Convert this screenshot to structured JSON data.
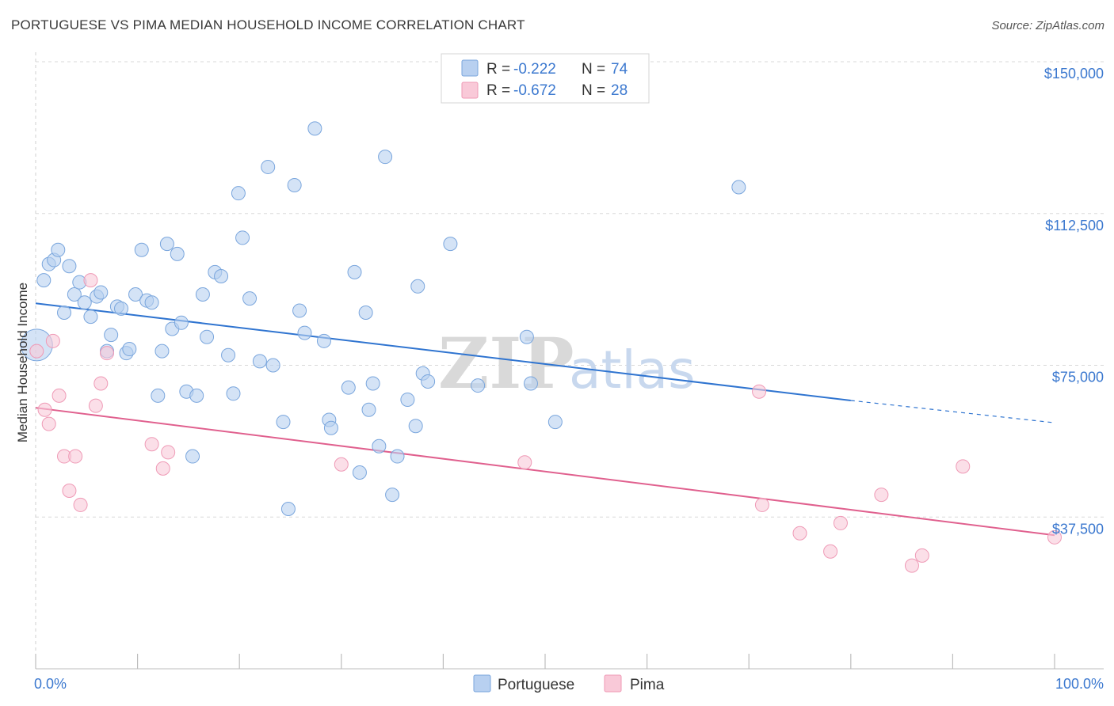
{
  "header": {
    "title": "PORTUGUESE VS PIMA MEDIAN HOUSEHOLD INCOME CORRELATION CHART",
    "source": "Source: ZipAtlas.com"
  },
  "watermark": {
    "zip": "ZIP",
    "atlas": "atlas"
  },
  "legend": {
    "rows": [
      {
        "r_label": "R =",
        "r_value": "-0.222",
        "n_label": "N =",
        "n_value": "74"
      },
      {
        "r_label": "R =",
        "r_value": "-0.672",
        "n_label": "N =",
        "n_value": "28"
      }
    ]
  },
  "bottom_legend": [
    "Portuguese",
    "Pima"
  ],
  "colors": {
    "portuguese_fill": "#b8d0f0",
    "portuguese_stroke": "#7aa6dd",
    "portuguese_line": "#2f74d0",
    "pima_fill": "#f9c9d8",
    "pima_stroke": "#ef9ab6",
    "pima_line": "#e0608e",
    "grid": "#d8d8d8",
    "tick_text": "#3b78cf"
  },
  "chart_data": {
    "type": "scatter",
    "title": "PORTUGUESE VS PIMA MEDIAN HOUSEHOLD INCOME CORRELATION CHART",
    "xlabel": "",
    "ylabel": "Median Household Income",
    "xlim": [
      0,
      100
    ],
    "ylim": [
      0,
      157500
    ],
    "x_tick_labels": [
      "0.0%",
      "100.0%"
    ],
    "y_ticks": [
      37500,
      75000,
      112500,
      150000
    ],
    "y_tick_labels": [
      "$37,500",
      "$75,000",
      "$112,500",
      "$150,000"
    ],
    "grid": true,
    "legend_position": "top-center",
    "series": [
      {
        "name": "Portuguese",
        "r": -0.222,
        "n": 74,
        "trend": {
          "x": [
            0,
            80,
            100
          ],
          "y": [
            90300,
            66300,
            60800
          ],
          "dashed_from_x": 80
        },
        "points": [
          [
            0.1,
            80000
          ],
          [
            0.8,
            96000
          ],
          [
            1.3,
            100000
          ],
          [
            1.8,
            101000
          ],
          [
            2.2,
            103500
          ],
          [
            2.8,
            88000
          ],
          [
            3.3,
            99500
          ],
          [
            3.8,
            92500
          ],
          [
            4.3,
            95500
          ],
          [
            4.8,
            90500
          ],
          [
            5.4,
            87000
          ],
          [
            6.0,
            92000
          ],
          [
            6.4,
            93000
          ],
          [
            7.0,
            78500
          ],
          [
            7.4,
            82500
          ],
          [
            8.0,
            89500
          ],
          [
            8.4,
            89000
          ],
          [
            8.9,
            78000
          ],
          [
            9.2,
            79000
          ],
          [
            9.8,
            92500
          ],
          [
            10.4,
            103500
          ],
          [
            10.9,
            91000
          ],
          [
            11.4,
            90500
          ],
          [
            12.0,
            67500
          ],
          [
            12.4,
            78500
          ],
          [
            12.9,
            105000
          ],
          [
            13.4,
            84000
          ],
          [
            13.9,
            102500
          ],
          [
            14.3,
            85500
          ],
          [
            14.8,
            68500
          ],
          [
            15.4,
            52500
          ],
          [
            15.8,
            67500
          ],
          [
            16.4,
            92500
          ],
          [
            16.8,
            82000
          ],
          [
            17.6,
            98000
          ],
          [
            18.2,
            97000
          ],
          [
            18.9,
            77500
          ],
          [
            19.4,
            68000
          ],
          [
            19.9,
            117500
          ],
          [
            20.3,
            106500
          ],
          [
            21.0,
            91500
          ],
          [
            22.0,
            76000
          ],
          [
            22.8,
            124000
          ],
          [
            23.3,
            75000
          ],
          [
            24.3,
            61000
          ],
          [
            24.8,
            39500
          ],
          [
            25.4,
            119500
          ],
          [
            25.9,
            88500
          ],
          [
            26.4,
            83000
          ],
          [
            27.4,
            133500
          ],
          [
            28.3,
            81000
          ],
          [
            28.8,
            61500
          ],
          [
            29.0,
            59500
          ],
          [
            30.7,
            69500
          ],
          [
            31.3,
            98000
          ],
          [
            31.8,
            48500
          ],
          [
            32.4,
            88000
          ],
          [
            32.7,
            64000
          ],
          [
            33.1,
            70500
          ],
          [
            33.7,
            55000
          ],
          [
            34.3,
            126500
          ],
          [
            35.0,
            43000
          ],
          [
            35.5,
            52500
          ],
          [
            36.5,
            66500
          ],
          [
            37.3,
            60000
          ],
          [
            37.5,
            94500
          ],
          [
            38.0,
            73000
          ],
          [
            38.5,
            71000
          ],
          [
            40.7,
            105000
          ],
          [
            43.4,
            70000
          ],
          [
            48.2,
            82000
          ],
          [
            48.6,
            70500
          ],
          [
            51.0,
            61000
          ],
          [
            69.0,
            119000
          ]
        ]
      },
      {
        "name": "Pima",
        "r": -0.672,
        "n": 28,
        "trend": {
          "x": [
            0,
            100
          ],
          "y": [
            64500,
            33000
          ]
        },
        "points": [
          [
            0.1,
            78500
          ],
          [
            0.9,
            64000
          ],
          [
            1.3,
            60500
          ],
          [
            1.7,
            81000
          ],
          [
            2.3,
            67500
          ],
          [
            2.8,
            52500
          ],
          [
            3.3,
            44000
          ],
          [
            3.9,
            52500
          ],
          [
            4.4,
            40500
          ],
          [
            5.4,
            96000
          ],
          [
            5.9,
            65000
          ],
          [
            6.4,
            70500
          ],
          [
            7.0,
            78000
          ],
          [
            11.4,
            55500
          ],
          [
            12.5,
            49500
          ],
          [
            13.0,
            53500
          ],
          [
            30.0,
            50500
          ],
          [
            48.0,
            51000
          ],
          [
            71.0,
            68500
          ],
          [
            71.3,
            40500
          ],
          [
            75.0,
            33500
          ],
          [
            78.0,
            29000
          ],
          [
            79.0,
            36000
          ],
          [
            83.0,
            43000
          ],
          [
            86.0,
            25500
          ],
          [
            87.0,
            28000
          ],
          [
            91.0,
            50000
          ],
          [
            100.0,
            32500
          ]
        ]
      }
    ]
  }
}
